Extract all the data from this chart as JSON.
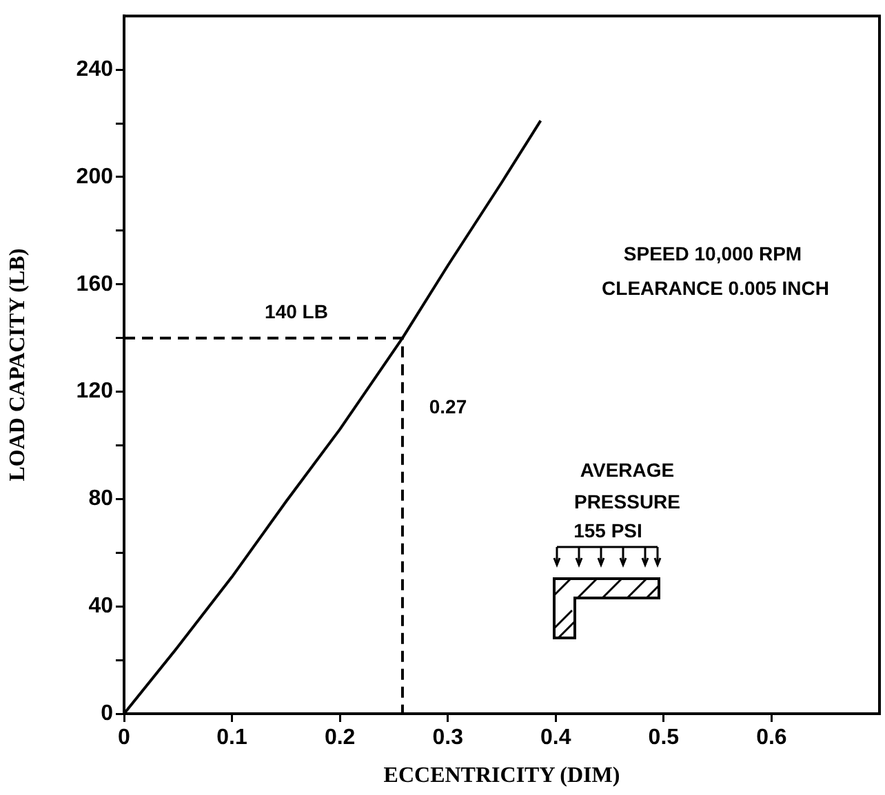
{
  "chart_data": {
    "type": "line",
    "xlabel": "ECCENTRICITY (DIM)",
    "ylabel": "LOAD CAPACITY (LB)",
    "xlim": [
      0,
      0.7
    ],
    "xticks": [
      0,
      0.1,
      0.2,
      0.3,
      0.4,
      0.5,
      0.6
    ],
    "ylim": [
      0,
      260
    ],
    "yticks": [
      0,
      {
        "value": 20,
        "label": null
      },
      40,
      {
        "value": 60,
        "label": null
      },
      80,
      {
        "value": 100,
        "label": null
      },
      120,
      {
        "value": 140,
        "label": null
      },
      160,
      {
        "value": 180,
        "label": null
      },
      200,
      {
        "value": 220,
        "label": null
      },
      240
    ],
    "grid": false,
    "legend": false,
    "marker": "none",
    "series": [
      {
        "color": "#000000",
        "line_style": "solid",
        "x": [
          0,
          0.05,
          0.1,
          0.15,
          0.2,
          0.258,
          0.3,
          0.35,
          0.386
        ],
        "values": [
          0,
          25,
          51,
          79,
          106,
          140,
          167,
          198,
          221
        ]
      },
      {
        "color": "#000000",
        "line_style": "dashed",
        "x": [
          0,
          0.258,
          0.258
        ],
        "values": [
          140,
          140,
          0
        ]
      }
    ],
    "annotations": [
      "140 LB",
      "0.27",
      "SPEED 10,000 RPM",
      "CLEARANCE 0.005 INCH",
      "AVERAGE",
      "PRESSURE",
      "155 PSI"
    ]
  }
}
